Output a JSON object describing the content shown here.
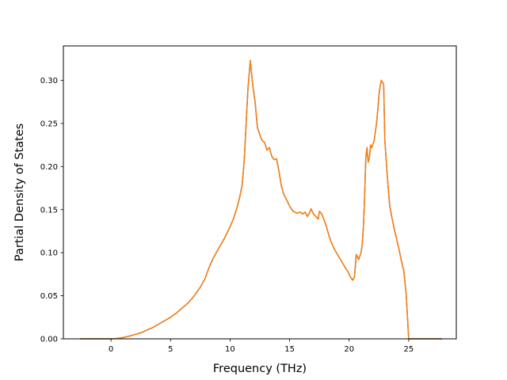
{
  "chart_data": {
    "type": "line",
    "title": "",
    "xlabel": "Frequency (THz)",
    "ylabel": "Partial Density of States",
    "xlim": [
      -4.0,
      29.0
    ],
    "ylim": [
      0.0,
      0.34
    ],
    "xticks": [
      0,
      5,
      10,
      15,
      20,
      25
    ],
    "xtick_labels": [
      "0",
      "5",
      "10",
      "15",
      "20",
      "25"
    ],
    "yticks": [
      0.0,
      0.05,
      0.1,
      0.15,
      0.2,
      0.25,
      0.3
    ],
    "ytick_labels": [
      "0.00",
      "0.05",
      "0.10",
      "0.15",
      "0.20",
      "0.25",
      "0.30"
    ],
    "grid": false,
    "legend": "none",
    "series": [
      {
        "color": "#ff7f0e",
        "overlay_color": "#1f77b4",
        "x": [
          -2.6,
          -1.0,
          0.0,
          0.5,
          1.0,
          1.5,
          2.0,
          2.5,
          3.0,
          3.5,
          4.0,
          4.5,
          5.0,
          5.5,
          6.0,
          6.5,
          7.0,
          7.5,
          7.9,
          8.0,
          8.3,
          8.6,
          9.0,
          9.5,
          10.0,
          10.3,
          10.6,
          10.8,
          11.0,
          11.1,
          11.2,
          11.3,
          11.5,
          11.7,
          11.9,
          12.1,
          12.3,
          12.5,
          12.6,
          12.7,
          12.9,
          13.1,
          13.3,
          13.5,
          13.7,
          13.9,
          14.1,
          14.3,
          14.5,
          14.8,
          15.0,
          15.3,
          15.6,
          15.9,
          16.1,
          16.3,
          16.5,
          16.7,
          16.8,
          17.0,
          17.2,
          17.4,
          17.5,
          17.7,
          17.9,
          18.1,
          18.3,
          18.5,
          18.8,
          19.1,
          19.4,
          19.7,
          19.9,
          20.1,
          20.3,
          20.45,
          20.6,
          20.8,
          21.0,
          21.1,
          21.2,
          21.3,
          21.4,
          21.5,
          21.6,
          21.7,
          21.8,
          21.9,
          22.0,
          22.1,
          22.2,
          22.3,
          22.4,
          22.5,
          22.6,
          22.7,
          22.8,
          22.9,
          23.0,
          23.2,
          23.4,
          23.6,
          23.8,
          24.0,
          24.2,
          24.4,
          24.6,
          24.8,
          25.0,
          25.1,
          25.2,
          25.3,
          25.4,
          26.0,
          27.0,
          27.8
        ],
        "y": [
          0.0,
          0.0,
          0.0,
          0.0005,
          0.0015,
          0.003,
          0.005,
          0.007,
          0.01,
          0.013,
          0.017,
          0.021,
          0.025,
          0.03,
          0.036,
          0.042,
          0.05,
          0.06,
          0.07,
          0.074,
          0.085,
          0.094,
          0.104,
          0.116,
          0.13,
          0.14,
          0.153,
          0.164,
          0.177,
          0.192,
          0.21,
          0.237,
          0.29,
          0.323,
          0.295,
          0.275,
          0.245,
          0.237,
          0.233,
          0.23,
          0.228,
          0.219,
          0.222,
          0.212,
          0.208,
          0.209,
          0.195,
          0.178,
          0.168,
          0.16,
          0.154,
          0.148,
          0.146,
          0.147,
          0.145,
          0.147,
          0.142,
          0.147,
          0.151,
          0.145,
          0.142,
          0.139,
          0.148,
          0.145,
          0.138,
          0.13,
          0.12,
          0.112,
          0.103,
          0.096,
          0.089,
          0.082,
          0.078,
          0.072,
          0.068,
          0.072,
          0.098,
          0.092,
          0.1,
          0.11,
          0.13,
          0.165,
          0.21,
          0.222,
          0.205,
          0.21,
          0.225,
          0.222,
          0.226,
          0.23,
          0.24,
          0.25,
          0.265,
          0.282,
          0.293,
          0.3,
          0.298,
          0.295,
          0.23,
          0.19,
          0.155,
          0.14,
          0.127,
          0.115,
          0.103,
          0.09,
          0.078,
          0.05,
          0.0,
          0.0,
          0.0,
          0.0,
          0.0,
          0.0,
          0.0,
          0.0
        ]
      }
    ]
  }
}
